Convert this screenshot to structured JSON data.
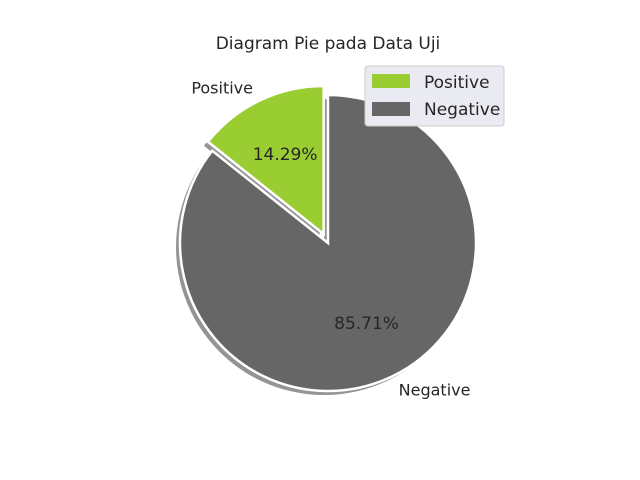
{
  "chart_data": {
    "type": "pie",
    "title": "Diagram Pie pada Data Uji",
    "slices": [
      {
        "name": "Positive",
        "value": 14.29,
        "pct_label": "14.29%",
        "color": "#9acd32",
        "exploded": true
      },
      {
        "name": "Negative",
        "value": 85.71,
        "pct_label": "85.71%",
        "color": "#666666",
        "exploded": false
      }
    ],
    "legend": {
      "position": "top-right",
      "entries": [
        "Positive",
        "Negative"
      ]
    },
    "shadow": true,
    "start_angle_deg": 90,
    "direction": "counterclockwise"
  }
}
